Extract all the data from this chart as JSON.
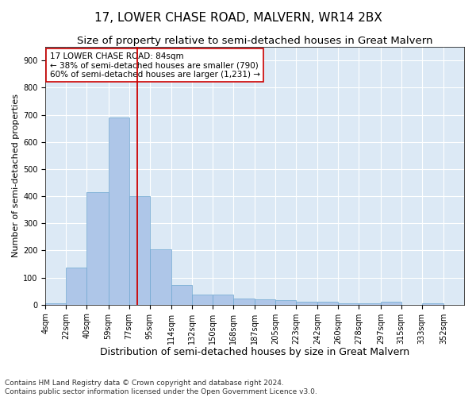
{
  "title": "17, LOWER CHASE ROAD, MALVERN, WR14 2BX",
  "subtitle": "Size of property relative to semi-detached houses in Great Malvern",
  "xlabel": "Distribution of semi-detached houses by size in Great Malvern",
  "ylabel": "Number of semi-detached properties",
  "footer_line1": "Contains HM Land Registry data © Crown copyright and database right 2024.",
  "footer_line2": "Contains public sector information licensed under the Open Government Licence v3.0.",
  "annotation_line1": "17 LOWER CHASE ROAD: 84sqm",
  "annotation_line2": "← 38% of semi-detached houses are smaller (790)",
  "annotation_line3": "60% of semi-detached houses are larger (1,231) →",
  "property_size": 84,
  "bar_bins": [
    4,
    22,
    40,
    59,
    77,
    95,
    114,
    132,
    150,
    168,
    187,
    205,
    223,
    242,
    260,
    278,
    297,
    315,
    333,
    352,
    370
  ],
  "bar_heights": [
    5,
    138,
    415,
    690,
    400,
    205,
    72,
    37,
    37,
    22,
    20,
    18,
    10,
    11,
    6,
    6,
    11,
    0,
    5,
    0
  ],
  "bar_color": "#aec6e8",
  "bar_edge_color": "#6fa8d0",
  "vline_x": 84,
  "vline_color": "#cc0000",
  "ylim": [
    0,
    950
  ],
  "yticks": [
    0,
    100,
    200,
    300,
    400,
    500,
    600,
    700,
    800,
    900
  ],
  "background_color": "#dce9f5",
  "annotation_box_color": "#ffffff",
  "annotation_box_edge": "#cc0000",
  "grid_color": "#ffffff",
  "title_fontsize": 11,
  "subtitle_fontsize": 9.5,
  "xlabel_fontsize": 9,
  "ylabel_fontsize": 8,
  "annotation_fontsize": 7.5,
  "tick_fontsize": 7,
  "footer_fontsize": 6.5
}
